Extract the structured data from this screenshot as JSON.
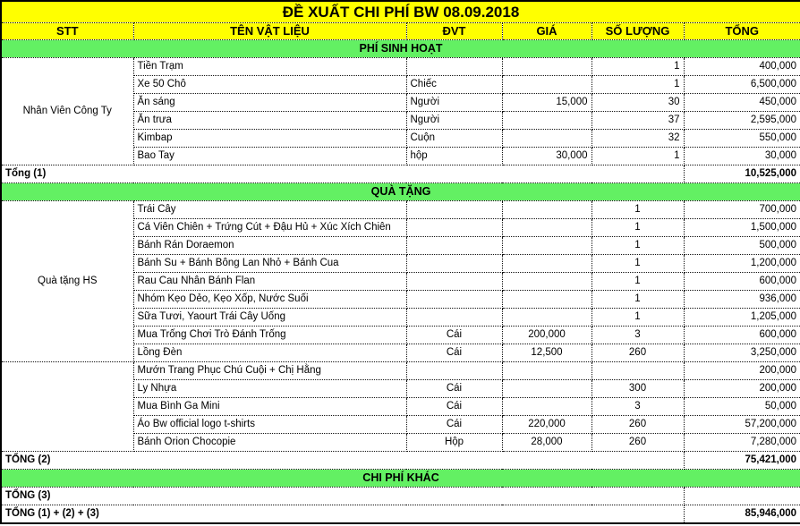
{
  "title": "ĐỀ XUẤT CHI PHÍ BW 08.09.2018",
  "columns": [
    "STT",
    "TÊN VẬT LIỆU",
    "ĐVT",
    "GIÁ",
    "SỐ LƯỢNG",
    "TỔNG"
  ],
  "colors": {
    "header_bg": "#FFFF00",
    "section_bg": "#63F063",
    "border": "#000000"
  },
  "sections": [
    {
      "type": "bar",
      "label": "PHÍ SINH HOẠT"
    },
    {
      "type": "group",
      "label": "Nhân Viên Công Ty",
      "style": "upper",
      "items": [
        {
          "name": "Tiền Trạm",
          "dvt": "",
          "gia": "",
          "qty": "1",
          "tong": "400,000"
        },
        {
          "name": "Xe 50 Chô",
          "dvt": "Chiếc",
          "gia": "",
          "qty": "1",
          "tong": "6,500,000"
        },
        {
          "name": "Ăn sáng",
          "dvt": "Người",
          "gia": "15,000",
          "qty": "30",
          "tong": "450,000"
        },
        {
          "name": "Ăn trưa",
          "dvt": "Người",
          "gia": "",
          "qty": "37",
          "tong": "2,595,000"
        },
        {
          "name": "Kimbap",
          "dvt": "Cuộn",
          "gia": "",
          "qty": "32",
          "tong": "550,000"
        },
        {
          "name": "Bao Tay",
          "dvt": "hộp",
          "gia": "30,000",
          "qty": "1",
          "tong": "30,000"
        }
      ]
    },
    {
      "type": "total",
      "label": "Tổng (1)",
      "value": "10,525,000"
    },
    {
      "type": "bar",
      "label": "QUÀ TẶNG"
    },
    {
      "type": "group",
      "label": "Quà tặng HS",
      "style": "lower",
      "items": [
        {
          "name": "Trái Cây",
          "dvt": "",
          "gia": "",
          "qty": "1",
          "tong": "700,000"
        },
        {
          "name": "Cá Viên Chiên + Trứng Cút + Đậu Hủ + Xúc Xích Chiên",
          "dvt": "",
          "gia": "",
          "qty": "1",
          "tong": "1,500,000"
        },
        {
          "name": "Bánh Rán Doraemon",
          "dvt": "",
          "gia": "",
          "qty": "1",
          "tong": "500,000"
        },
        {
          "name": "Bánh Su + Bánh Bông Lan Nhỏ + Bánh Cua",
          "dvt": "",
          "gia": "",
          "qty": "1",
          "tong": "1,200,000"
        },
        {
          "name": "Rau Cau Nhân Bánh Flan",
          "dvt": "",
          "gia": "",
          "qty": "1",
          "tong": "600,000"
        },
        {
          "name": "Nhóm Kẹo Dẻo, Kẹo Xốp, Nước Suối",
          "dvt": "",
          "gia": "",
          "qty": "1",
          "tong": "936,000"
        },
        {
          "name": "Sữa Tươi, Yaourt Trái Cây Uống",
          "dvt": "",
          "gia": "",
          "qty": "1",
          "tong": "1,205,000"
        },
        {
          "name": "Mua Trống Chơi Trò Đánh Trống",
          "dvt": "Cái",
          "gia": "200,000",
          "qty": "3",
          "tong": "600,000"
        },
        {
          "name": "Lồng Đèn",
          "dvt": "Cái",
          "gia": "12,500",
          "qty": "260",
          "tong": "3,250,000"
        }
      ]
    },
    {
      "type": "group",
      "label": "",
      "style": "lower",
      "items": [
        {
          "name": "Mướn Trang Phục Chú Cuội + Chị Hằng",
          "dvt": "",
          "gia": "",
          "qty": "",
          "tong": "200,000"
        },
        {
          "name": "Ly Nhựa",
          "dvt": "Cái",
          "gia": "",
          "qty": "300",
          "tong": "200,000"
        },
        {
          "name": "Mua Bình Ga Mini",
          "dvt": "Cái",
          "gia": "",
          "qty": "3",
          "tong": "50,000"
        },
        {
          "name": "Áo Bw official logo t-shirts",
          "dvt": "Cái",
          "gia": "220,000",
          "qty": "260",
          "tong": "57,200,000"
        },
        {
          "name": "Bánh Orion Chocopie",
          "dvt": "Hộp",
          "gia": "28,000",
          "qty": "260",
          "tong": "7,280,000"
        }
      ]
    },
    {
      "type": "total",
      "label": "TỔNG (2)",
      "value": "75,421,000"
    },
    {
      "type": "bar",
      "label": "CHI PHÍ KHÁC"
    },
    {
      "type": "total",
      "label": "TỔNG (3)",
      "value": ""
    },
    {
      "type": "total",
      "label": "TỔNG (1) + (2) + (3)",
      "value": "85,946,000"
    }
  ]
}
